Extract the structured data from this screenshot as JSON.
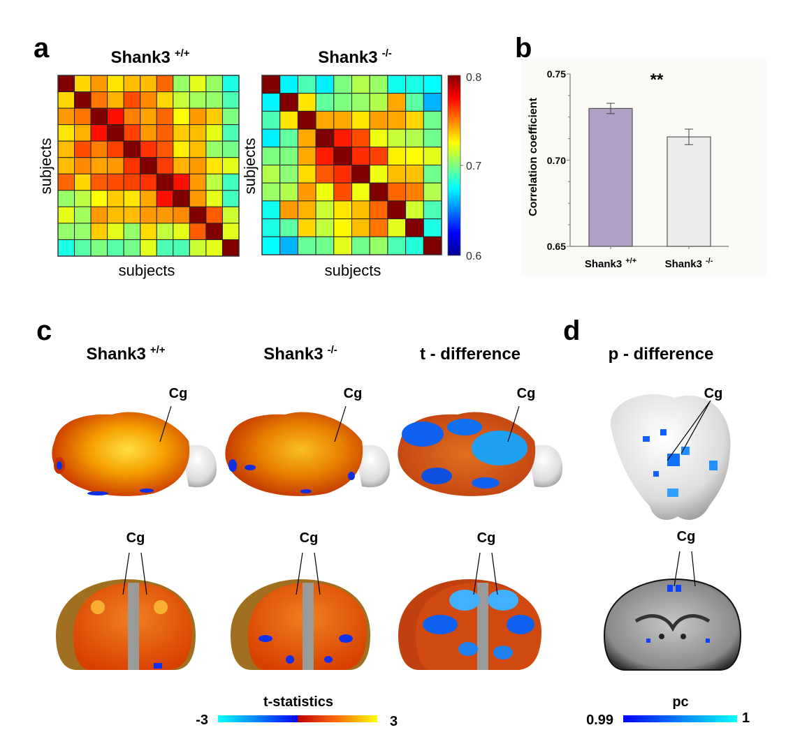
{
  "panels": {
    "a": "a",
    "b": "b",
    "c": "c",
    "d": "d"
  },
  "chart_data": [
    {
      "type": "heatmap",
      "title": "Shank3",
      "title_sup": "+/+",
      "xlabel": "subjects",
      "ylabel": "subjects",
      "colormap": "jet",
      "clim": [
        0.6,
        0.8
      ],
      "values": [
        [
          0.8,
          0.733,
          0.745,
          0.73,
          0.738,
          0.738,
          0.755,
          0.705,
          0.72,
          0.705,
          0.68
        ],
        [
          0.733,
          0.8,
          0.752,
          0.74,
          0.76,
          0.748,
          0.733,
          0.714,
          0.707,
          0.704,
          0.69
        ],
        [
          0.745,
          0.752,
          0.8,
          0.772,
          0.75,
          0.743,
          0.755,
          0.725,
          0.745,
          0.735,
          0.7
        ],
        [
          0.73,
          0.74,
          0.772,
          0.8,
          0.762,
          0.745,
          0.756,
          0.735,
          0.738,
          0.72,
          0.69
        ],
        [
          0.738,
          0.76,
          0.75,
          0.762,
          0.8,
          0.765,
          0.758,
          0.728,
          0.738,
          0.705,
          0.698
        ],
        [
          0.738,
          0.748,
          0.743,
          0.745,
          0.765,
          0.8,
          0.763,
          0.74,
          0.745,
          0.73,
          0.72
        ],
        [
          0.755,
          0.733,
          0.757,
          0.76,
          0.762,
          0.765,
          0.8,
          0.772,
          0.745,
          0.712,
          0.688
        ],
        [
          0.705,
          0.712,
          0.725,
          0.735,
          0.73,
          0.742,
          0.772,
          0.8,
          0.745,
          0.72,
          0.688
        ],
        [
          0.72,
          0.707,
          0.745,
          0.738,
          0.738,
          0.745,
          0.745,
          0.748,
          0.8,
          0.757,
          0.715
        ],
        [
          0.704,
          0.704,
          0.735,
          0.72,
          0.704,
          0.732,
          0.713,
          0.72,
          0.757,
          0.8,
          0.72
        ],
        [
          0.68,
          0.692,
          0.7,
          0.692,
          0.698,
          0.72,
          0.69,
          0.69,
          0.715,
          0.72,
          0.8
        ]
      ]
    },
    {
      "type": "heatmap",
      "title": "Shank3",
      "title_sup": "-/-",
      "xlabel": "subjects",
      "ylabel": "subjects",
      "colormap": "jet",
      "clim": [
        0.6,
        0.8
      ],
      "colorbar_ticks": [
        "0.8",
        "0.7",
        "0.6"
      ],
      "values": [
        [
          0.8,
          0.673,
          0.69,
          0.672,
          0.7,
          0.71,
          0.705,
          0.678,
          0.68,
          0.675
        ],
        [
          0.673,
          0.8,
          0.73,
          0.694,
          0.7,
          0.704,
          0.71,
          0.742,
          0.693,
          0.66
        ],
        [
          0.69,
          0.73,
          0.8,
          0.742,
          0.742,
          0.73,
          0.744,
          0.742,
          0.733,
          0.697
        ],
        [
          0.672,
          0.694,
          0.742,
          0.8,
          0.77,
          0.76,
          0.722,
          0.714,
          0.71,
          0.697
        ],
        [
          0.7,
          0.7,
          0.742,
          0.77,
          0.8,
          0.766,
          0.762,
          0.728,
          0.725,
          0.72
        ],
        [
          0.71,
          0.702,
          0.732,
          0.758,
          0.766,
          0.8,
          0.722,
          0.738,
          0.737,
          0.697
        ],
        [
          0.705,
          0.71,
          0.745,
          0.722,
          0.76,
          0.722,
          0.8,
          0.755,
          0.75,
          0.71
        ],
        [
          0.678,
          0.745,
          0.74,
          0.715,
          0.73,
          0.738,
          0.755,
          0.8,
          0.716,
          0.69
        ],
        [
          0.68,
          0.693,
          0.733,
          0.713,
          0.726,
          0.738,
          0.752,
          0.72,
          0.8,
          0.68
        ],
        [
          0.675,
          0.66,
          0.695,
          0.697,
          0.72,
          0.697,
          0.705,
          0.69,
          0.682,
          0.8
        ]
      ]
    },
    {
      "type": "bar",
      "categories": [
        "Shank3",
        "Shank3"
      ],
      "category_sups": [
        "+/+",
        "-/-"
      ],
      "values": [
        0.73,
        0.7135
      ],
      "errors": [
        0.003,
        0.0045
      ],
      "colors": [
        "#b09fc4",
        "#ececec"
      ],
      "ylabel": "Correlation coefficient",
      "ylim": [
        0.65,
        0.75
      ],
      "yticks": [
        "0.65",
        "0.70",
        "0.75"
      ],
      "annotation": "**"
    }
  ],
  "brain_panels": {
    "titles": [
      {
        "main": "Shank3",
        "sup": "+/+"
      },
      {
        "main": "Shank3",
        "sup": "-/-"
      },
      {
        "main": "t - difference",
        "sup": ""
      },
      {
        "main": "p - difference",
        "sup": ""
      }
    ],
    "region_label": "Cg",
    "t_colorbar": {
      "title": "t-statistics",
      "min": "-3",
      "max": "3"
    },
    "p_colorbar": {
      "title": "pc",
      "min": "0.99",
      "max": "1"
    }
  }
}
